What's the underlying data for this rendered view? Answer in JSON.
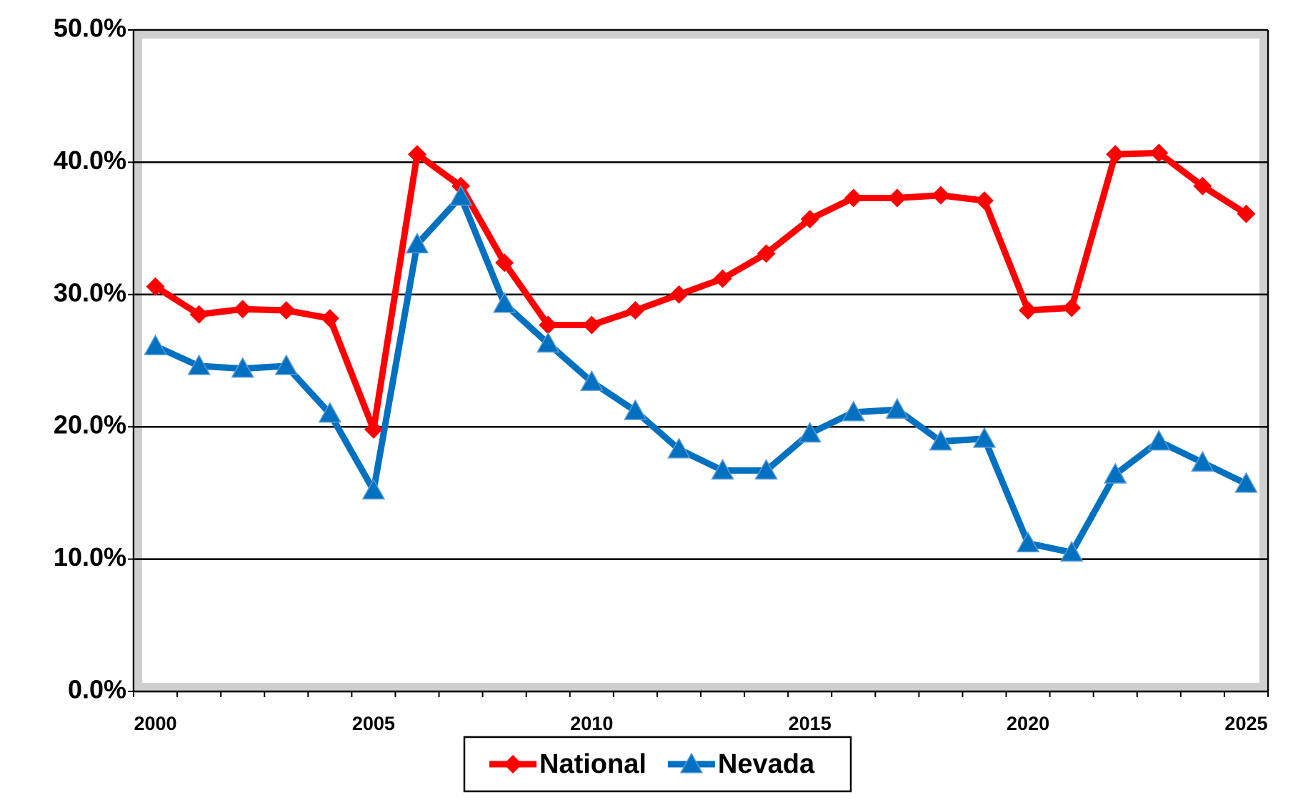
{
  "chart_data": {
    "type": "line",
    "categories": [
      "2000",
      null,
      null,
      null,
      null,
      "2005",
      null,
      null,
      null,
      null,
      "2010",
      null,
      null,
      null,
      null,
      "2015",
      null,
      null,
      null,
      null,
      "2020",
      null,
      null,
      null,
      null,
      "2025"
    ],
    "series": [
      {
        "name": "National",
        "color": "#ff0000",
        "marker": "diamond",
        "values": [
          30.6,
          28.5,
          28.9,
          28.8,
          28.2,
          19.8,
          40.6,
          38.2,
          32.4,
          27.7,
          27.7,
          28.8,
          30.0,
          31.2,
          33.1,
          35.7,
          37.3,
          37.3,
          37.5,
          37.1,
          28.8,
          29.0,
          40.6,
          40.7,
          38.2,
          36.1
        ]
      },
      {
        "name": "Nevada",
        "color": "#0070c0",
        "marker": "triangle",
        "values": [
          26.1,
          24.6,
          24.4,
          24.6,
          21.0,
          15.2,
          33.8,
          37.4,
          29.3,
          26.3,
          23.4,
          21.2,
          18.3,
          16.7,
          16.7,
          19.5,
          21.1,
          21.3,
          18.9,
          19.1,
          11.2,
          10.5,
          16.4,
          18.9,
          17.3,
          15.7
        ]
      }
    ],
    "ylim": [
      0,
      50
    ],
    "yticks": [
      {
        "value": 0,
        "label": "0.0%"
      },
      {
        "value": 10,
        "label": "10.0%"
      },
      {
        "value": 20,
        "label": "20.0%"
      },
      {
        "value": 30,
        "label": "30.0%"
      },
      {
        "value": 40,
        "label": "40.0%"
      },
      {
        "value": 50,
        "label": "50.0%"
      }
    ],
    "grid": true,
    "legend": "bottom"
  }
}
